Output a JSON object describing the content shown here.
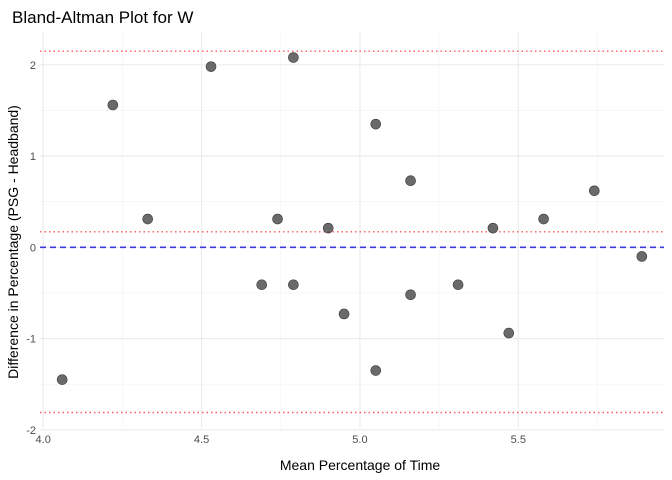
{
  "chart_data": {
    "type": "scatter",
    "title": "Bland-Altman Plot for W",
    "xlabel": "Mean Percentage of Time",
    "ylabel": "Difference in Percentage (PSG - Headband)",
    "xlim": [
      3.99,
      5.96
    ],
    "ylim": [
      -1.98,
      2.36
    ],
    "x_ticks": [
      4.0,
      4.5,
      5.0,
      5.5
    ],
    "x_tick_labels": [
      "4.0",
      "4.5",
      "5.0",
      "5.5"
    ],
    "y_ticks": [
      -2,
      -1,
      0,
      1,
      2
    ],
    "y_tick_labels": [
      "-2",
      "-1",
      "0",
      "1",
      "2"
    ],
    "grid": true,
    "reference_lines": [
      {
        "y": 0.0,
        "style": "dashed",
        "color": "#3b3bd4"
      },
      {
        "y": 0.17,
        "style": "dotted",
        "color": "#ff5a5a"
      },
      {
        "y": 2.15,
        "style": "dotted",
        "color": "#ff5a5a"
      },
      {
        "y": -1.81,
        "style": "dotted",
        "color": "#ff5a5a"
      }
    ],
    "point_color": "#555555",
    "points": [
      {
        "x": 4.06,
        "y": -1.45
      },
      {
        "x": 4.22,
        "y": 1.56
      },
      {
        "x": 4.33,
        "y": 0.31
      },
      {
        "x": 4.53,
        "y": 1.98
      },
      {
        "x": 4.69,
        "y": -0.41
      },
      {
        "x": 4.74,
        "y": 0.31
      },
      {
        "x": 4.79,
        "y": 2.08
      },
      {
        "x": 4.79,
        "y": -0.41
      },
      {
        "x": 4.9,
        "y": 0.21
      },
      {
        "x": 4.95,
        "y": -0.73
      },
      {
        "x": 5.05,
        "y": 1.35
      },
      {
        "x": 5.05,
        "y": -1.35
      },
      {
        "x": 5.16,
        "y": 0.73
      },
      {
        "x": 5.16,
        "y": -0.52
      },
      {
        "x": 5.31,
        "y": -0.41
      },
      {
        "x": 5.42,
        "y": 0.21
      },
      {
        "x": 5.47,
        "y": -0.94
      },
      {
        "x": 5.58,
        "y": 0.31
      },
      {
        "x": 5.74,
        "y": 0.62
      },
      {
        "x": 5.89,
        "y": -0.1
      }
    ]
  }
}
